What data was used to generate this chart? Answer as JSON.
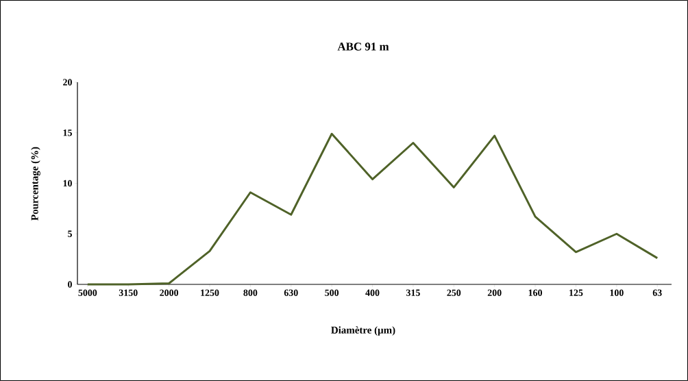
{
  "chart_data": {
    "type": "line",
    "title": "ABC 91 m",
    "xlabel": "Diamètre (µm)",
    "ylabel": "Pourcentage (%)",
    "categories": [
      "5000",
      "3150",
      "2000",
      "1250",
      "800",
      "630",
      "500",
      "400",
      "315",
      "250",
      "200",
      "160",
      "125",
      "100",
      "63"
    ],
    "series": [
      {
        "color": "#4f6228",
        "values": [
          0,
          0,
          0.1,
          3.3,
          9.1,
          6.9,
          14.9,
          10.4,
          14.0,
          9.6,
          14.7,
          6.7,
          3.2,
          5.0,
          2.6
        ]
      }
    ],
    "ylim": [
      0,
      20
    ],
    "yticks": [
      0,
      5,
      10,
      15,
      20
    ],
    "grid": false,
    "marker": "none",
    "line_style": "solid"
  }
}
